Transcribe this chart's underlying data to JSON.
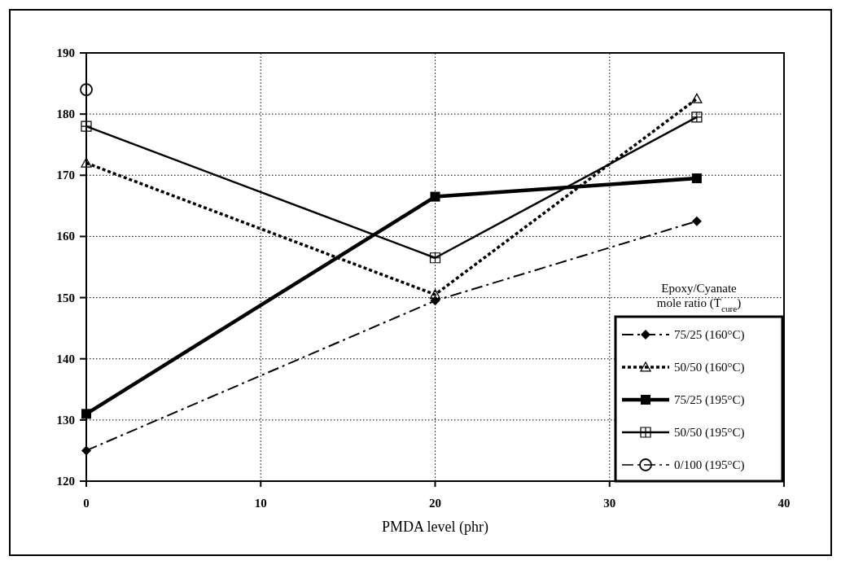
{
  "chart_data": {
    "type": "line",
    "xlabel": "PMDA level (phr)",
    "legend_title": "Epoxy/Cyanate mole ratio (T$_{cure}$)",
    "legend": "bottom right",
    "grid": true,
    "xlim": [
      0,
      40
    ],
    "xticks": [
      0,
      10,
      20,
      30,
      40
    ],
    "ylim": [
      120,
      190
    ],
    "yticks": [
      120,
      130,
      140,
      150,
      160,
      170,
      180,
      190
    ],
    "series": [
      {
        "name": "75/25 (160°C)",
        "color": "#000000",
        "x": [
          0,
          20,
          35
        ],
        "values": [
          125,
          149.5,
          162.5
        ],
        "marker": "diamond",
        "line_style": "dashed"
      },
      {
        "name": "50/50 (160°C)",
        "color": "#000000",
        "x": [
          0,
          20,
          35
        ],
        "values": [
          172,
          150.5,
          182.5
        ],
        "marker": "triangle",
        "line_style": "dotted"
      },
      {
        "name": "75/25 (195°C)",
        "color": "#000000",
        "x": [
          0,
          20,
          35
        ],
        "values": [
          131,
          166.5,
          169.5
        ],
        "marker": "square",
        "line_style": "solid"
      },
      {
        "name": "50/50 (195°C)",
        "color": "#000000",
        "x": [
          0,
          20,
          35
        ],
        "values": [
          178,
          156.5,
          179.5
        ],
        "marker": "cross",
        "line_style": "solid"
      },
      {
        "name": "0/100 (195°C)",
        "color": "#000000",
        "x": [
          0
        ],
        "values": [
          184
        ],
        "marker": "circle",
        "line_style": "dashed"
      }
    ]
  }
}
